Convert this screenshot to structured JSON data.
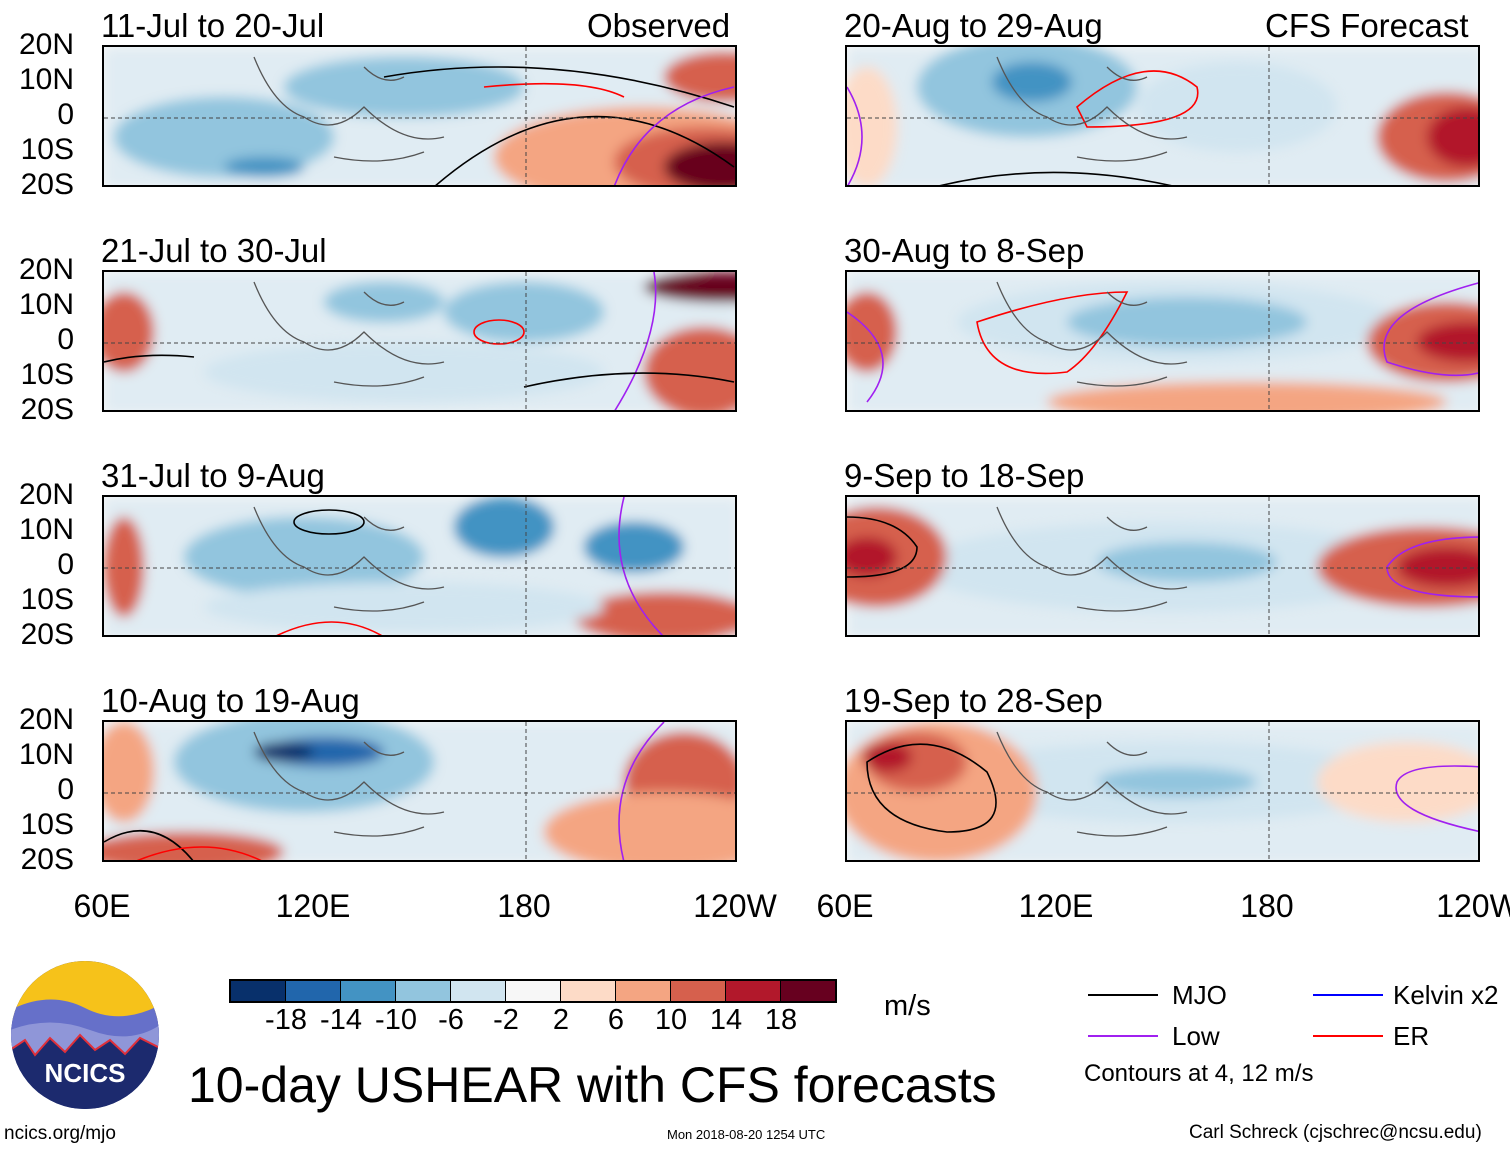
{
  "header": {
    "left": "Observed",
    "right": "CFS Forecast"
  },
  "panels_left": [
    {
      "title": "11-Jul to 20-Jul"
    },
    {
      "title": "21-Jul to 30-Jul"
    },
    {
      "title": "31-Jul to 9-Aug"
    },
    {
      "title": "10-Aug to 19-Aug"
    }
  ],
  "panels_right": [
    {
      "title": "20-Aug to 29-Aug"
    },
    {
      "title": "30-Aug to 8-Sep"
    },
    {
      "title": "9-Sep to 18-Sep"
    },
    {
      "title": "19-Sep to 28-Sep"
    }
  ],
  "lat_labels": [
    "20N",
    "10N",
    "0",
    "10S",
    "20S"
  ],
  "lon_labels": [
    "60E",
    "120E",
    "180",
    "120W"
  ],
  "colorbar": {
    "colors": [
      "#08306b",
      "#2166ac",
      "#4393c3",
      "#92c5de",
      "#d1e5f0",
      "#f7f7f7",
      "#fddbc7",
      "#f4a582",
      "#d6604d",
      "#b2182b",
      "#67001f"
    ],
    "labels": [
      "-18",
      "-14",
      "-10",
      "-6",
      "-2",
      "2",
      "6",
      "10",
      "14",
      "18"
    ],
    "units": "m/s"
  },
  "title": "10-day USHEAR with CFS forecasts",
  "legend": {
    "items": [
      {
        "label": "MJO",
        "color": "#000000"
      },
      {
        "label": "Kelvin x2",
        "color": "#0000ff"
      },
      {
        "label": "Low",
        "color": "#a020f0"
      },
      {
        "label": "ER",
        "color": "#ff0000"
      }
    ],
    "note": "Contours at 4, 12 m/s"
  },
  "logo": {
    "text": "NCICS"
  },
  "footer": {
    "url": "ncics.org/mjo",
    "timestamp": "Mon 2018-08-20 1254 UTC",
    "credit": "Carl Schreck (cjschrec@ncsu.edu)"
  }
}
